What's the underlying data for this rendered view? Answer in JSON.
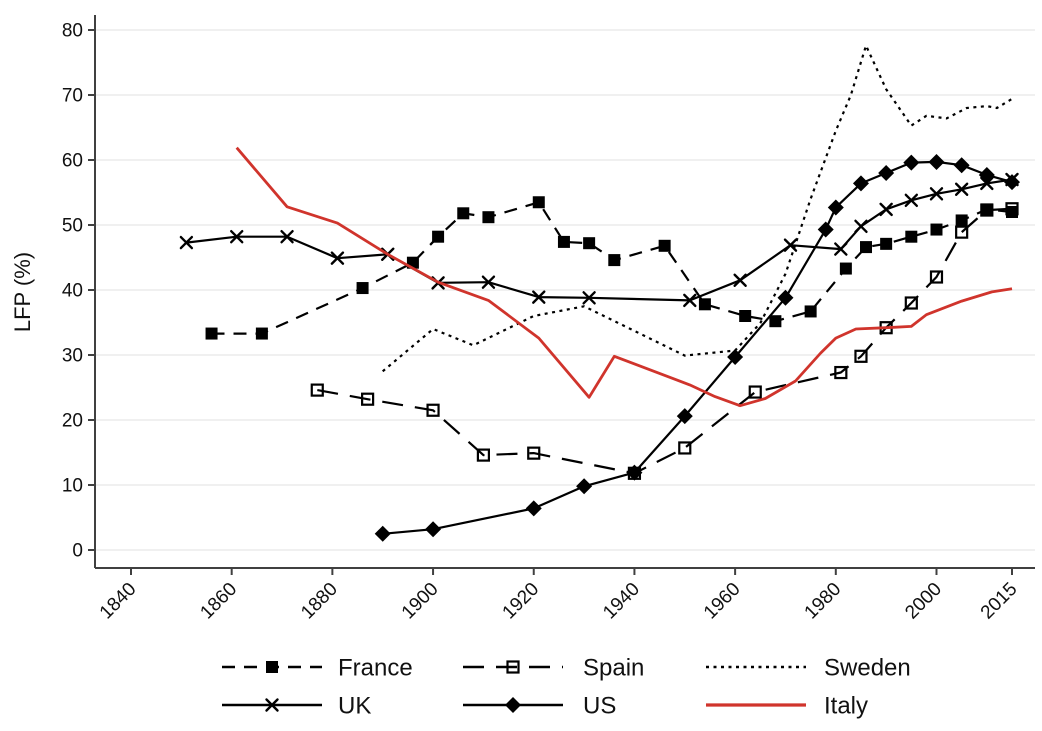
{
  "figure": {
    "ylabel": "LFP (%)"
  },
  "chart_data": {
    "type": "line",
    "title": "",
    "xlabel": "",
    "ylabel": "LFP (%)",
    "xlim": [
      1840,
      2015
    ],
    "ylim": [
      0,
      80
    ],
    "yticks": [
      0,
      10,
      20,
      30,
      40,
      50,
      60,
      70,
      80
    ],
    "xticks": [
      1840,
      1860,
      1880,
      1900,
      1920,
      1940,
      1960,
      1980,
      2000,
      2015
    ],
    "grid": "horizontal",
    "legend_position": "bottom",
    "legend_rows": [
      [
        "France",
        "Spain",
        "Sweden"
      ],
      [
        "UK",
        "US",
        "Italy"
      ]
    ],
    "colors": {
      "black_series": "#000000",
      "italy_red": "#d0342c",
      "gridline": "#ebebeb",
      "axis": "#404040"
    },
    "series": [
      {
        "name": "France",
        "color": "#000000",
        "line": "dashed",
        "marker": "square-filled",
        "points": [
          [
            1856,
            33.3
          ],
          [
            1866,
            33.3
          ],
          [
            1886,
            40.3
          ],
          [
            1896,
            44.2
          ],
          [
            1901,
            48.2
          ],
          [
            1906,
            51.8
          ],
          [
            1911,
            51.2
          ],
          [
            1921,
            53.5
          ],
          [
            1926,
            47.4
          ],
          [
            1931,
            47.2
          ],
          [
            1936,
            44.6
          ],
          [
            1946,
            46.8
          ],
          [
            1954,
            37.8
          ],
          [
            1962,
            36.0
          ],
          [
            1968,
            35.2
          ],
          [
            1975,
            36.7
          ],
          [
            1982,
            43.3
          ],
          [
            1986,
            46.6
          ],
          [
            1990,
            47.1
          ],
          [
            1995,
            48.2
          ],
          [
            2000,
            49.3
          ],
          [
            2005,
            50.7
          ],
          [
            2010,
            52.4
          ],
          [
            2015,
            52.0
          ]
        ]
      },
      {
        "name": "Spain",
        "color": "#000000",
        "line": "longdash",
        "marker": "square-open",
        "points": [
          [
            1877,
            24.6
          ],
          [
            1887,
            23.2
          ],
          [
            1900,
            21.5
          ],
          [
            1910,
            14.6
          ],
          [
            1920,
            14.9
          ],
          [
            1940,
            11.8
          ],
          [
            1950,
            15.7
          ],
          [
            1964,
            24.3
          ],
          [
            1981,
            27.3
          ],
          [
            1985,
            29.8
          ],
          [
            1990,
            34.2
          ],
          [
            1995,
            38.0
          ],
          [
            2000,
            42.0
          ],
          [
            2005,
            48.9
          ],
          [
            2010,
            52.3
          ],
          [
            2015,
            52.5
          ]
        ]
      },
      {
        "name": "Sweden",
        "color": "#000000",
        "line": "dotted",
        "marker": "none",
        "points": [
          [
            1890,
            27.5
          ],
          [
            1900,
            34.0
          ],
          [
            1908,
            31.5
          ],
          [
            1920,
            36.0
          ],
          [
            1930,
            37.5
          ],
          [
            1940,
            33.7
          ],
          [
            1950,
            29.9
          ],
          [
            1960,
            30.7
          ],
          [
            1965,
            34.9
          ],
          [
            1970,
            42.5
          ],
          [
            1975,
            54.0
          ],
          [
            1980,
            64.5
          ],
          [
            1983,
            70.0
          ],
          [
            1986,
            77.6
          ],
          [
            1990,
            70.9
          ],
          [
            1995,
            65.3
          ],
          [
            1998,
            66.8
          ],
          [
            2002,
            66.4
          ],
          [
            2006,
            68.0
          ],
          [
            2010,
            68.3
          ],
          [
            2012,
            68.0
          ],
          [
            2015,
            69.4
          ]
        ]
      },
      {
        "name": "UK",
        "color": "#000000",
        "line": "solid",
        "marker": "x",
        "points": [
          [
            1851,
            47.3
          ],
          [
            1861,
            48.2
          ],
          [
            1871,
            48.2
          ],
          [
            1881,
            44.9
          ],
          [
            1891,
            45.5
          ],
          [
            1901,
            41.1
          ],
          [
            1911,
            41.2
          ],
          [
            1921,
            38.9
          ],
          [
            1931,
            38.8
          ],
          [
            1951,
            38.4
          ],
          [
            1961,
            41.5
          ],
          [
            1971,
            46.9
          ],
          [
            1981,
            46.3
          ],
          [
            1985,
            49.8
          ],
          [
            1990,
            52.4
          ],
          [
            1995,
            53.8
          ],
          [
            2000,
            54.8
          ],
          [
            2005,
            55.5
          ],
          [
            2010,
            56.4
          ],
          [
            2015,
            57.0
          ]
        ]
      },
      {
        "name": "US",
        "color": "#000000",
        "line": "solid",
        "marker": "diamond-filled",
        "points": [
          [
            1890,
            2.5
          ],
          [
            1900,
            3.2
          ],
          [
            1920,
            6.4
          ],
          [
            1930,
            9.8
          ],
          [
            1940,
            11.9
          ],
          [
            1950,
            20.6
          ],
          [
            1960,
            29.7
          ],
          [
            1970,
            38.8
          ],
          [
            1978,
            49.3
          ],
          [
            1980,
            52.7
          ],
          [
            1985,
            56.4
          ],
          [
            1990,
            58.0
          ],
          [
            1995,
            59.6
          ],
          [
            2000,
            59.7
          ],
          [
            2005,
            59.2
          ],
          [
            2010,
            57.7
          ],
          [
            2015,
            56.6
          ]
        ]
      },
      {
        "name": "Italy",
        "color": "#d0342c",
        "line": "solid",
        "marker": "none",
        "points": [
          [
            1861,
            61.9
          ],
          [
            1871,
            52.8
          ],
          [
            1881,
            50.3
          ],
          [
            1891,
            45.5
          ],
          [
            1901,
            41.2
          ],
          [
            1911,
            38.4
          ],
          [
            1921,
            32.6
          ],
          [
            1931,
            23.5
          ],
          [
            1936,
            29.8
          ],
          [
            1951,
            25.4
          ],
          [
            1956,
            23.6
          ],
          [
            1961,
            22.2
          ],
          [
            1966,
            23.3
          ],
          [
            1972,
            26.0
          ],
          [
            1977,
            30.3
          ],
          [
            1980,
            32.6
          ],
          [
            1984,
            34.0
          ],
          [
            1990,
            34.2
          ],
          [
            1995,
            34.4
          ],
          [
            1998,
            36.2
          ],
          [
            2005,
            38.3
          ],
          [
            2011,
            39.7
          ],
          [
            2015,
            40.2
          ]
        ]
      }
    ]
  }
}
